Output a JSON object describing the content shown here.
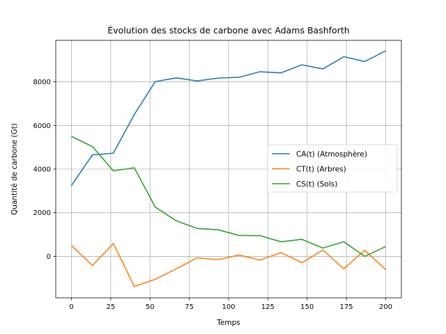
{
  "chart_data": {
    "type": "line",
    "title": "Évolution des stocks de carbone avec Adams Bashforth",
    "xlabel": "Temps",
    "ylabel": "Quantité de carbone (Gt)",
    "xlim": [
      -10,
      210
    ],
    "ylim": [
      -1900,
      9900
    ],
    "xticks": [
      0,
      25,
      50,
      75,
      100,
      125,
      150,
      175,
      200
    ],
    "yticks": [
      0,
      2000,
      4000,
      6000,
      8000
    ],
    "grid": true,
    "legend_position": "center-right",
    "x": [
      0,
      13.33,
      26.67,
      40,
      53.33,
      66.67,
      80,
      93.33,
      106.67,
      120,
      133.33,
      146.67,
      160,
      173.33,
      186.67,
      200
    ],
    "series": [
      {
        "name": "CA(t) (Atmosphère)",
        "color": "#1f77b4",
        "values": [
          3250,
          4650,
          4730,
          6500,
          8010,
          8180,
          8040,
          8170,
          8210,
          8460,
          8410,
          8780,
          8590,
          9150,
          8930,
          9420
        ]
      },
      {
        "name": "CT(t) (Arbres)",
        "color": "#ff7f0e",
        "values": [
          500,
          -420,
          590,
          -1380,
          -1050,
          -570,
          -70,
          -150,
          60,
          -170,
          170,
          -290,
          290,
          -570,
          280,
          -610
        ]
      },
      {
        "name": "CS(t) (Sols)",
        "color": "#2ca02c",
        "values": [
          5500,
          5030,
          3920,
          4060,
          2260,
          1630,
          1280,
          1220,
          960,
          950,
          670,
          780,
          380,
          670,
          0,
          450
        ]
      }
    ]
  }
}
